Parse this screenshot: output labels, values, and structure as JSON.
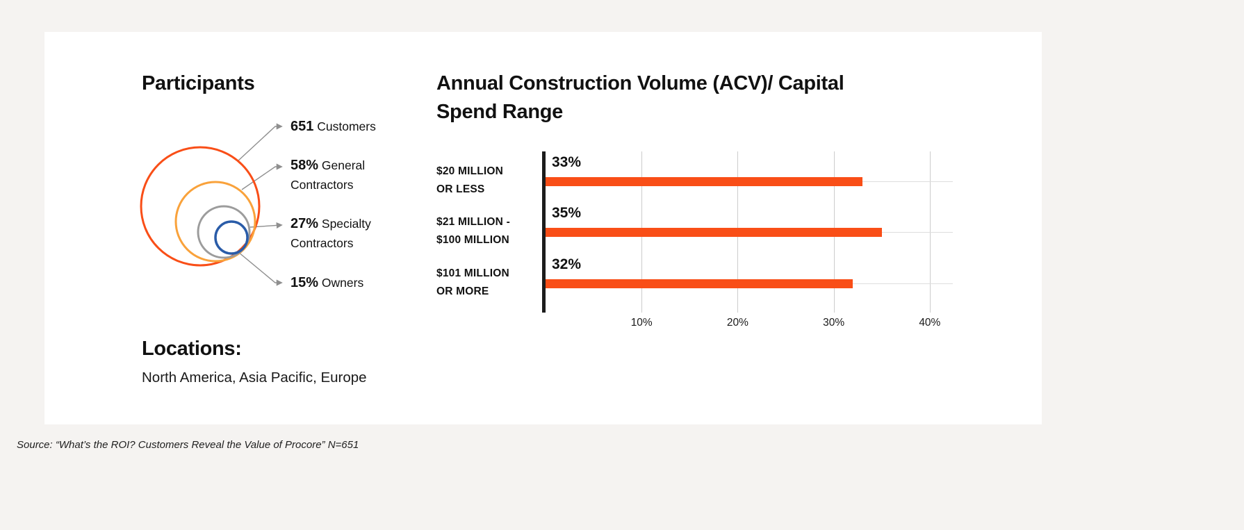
{
  "colors": {
    "page_background": "#f5f3f1",
    "card_background": "#ffffff",
    "accent_orange": "#F94E17",
    "amber": "#F9A23B",
    "gray": "#9C9C9C",
    "blue": "#2A5CA8",
    "axis": "#1c1c1c",
    "gridline": "#cccccc"
  },
  "participants": {
    "title": "Participants",
    "items": [
      {
        "value": "651",
        "label": "Customers",
        "color": "#F94E17"
      },
      {
        "value": "58%",
        "label": "General Contractors",
        "color": "#F9A23B"
      },
      {
        "value": "27%",
        "label": "Specialty Contractors",
        "color": "#9C9C9C"
      },
      {
        "value": "15%",
        "label": "Owners",
        "color": "#2A5CA8"
      }
    ]
  },
  "locations": {
    "title": "Locations:",
    "text": "North America, Asia Pacific, Europe"
  },
  "chart_data": {
    "type": "bar",
    "orientation": "horizontal",
    "title": "Annual Construction Volume (ACV)/ Capital Spend Range",
    "categories": [
      "$20 MILLION OR LESS",
      "$21 MILLION - $100 MILLION",
      "$101 MILLION OR MORE"
    ],
    "values": [
      33,
      35,
      32
    ],
    "value_labels": [
      "33%",
      "35%",
      "32%"
    ],
    "xticks": [
      {
        "value": 10,
        "label": "10%"
      },
      {
        "value": 20,
        "label": "20%"
      },
      {
        "value": 30,
        "label": "30%"
      },
      {
        "value": 40,
        "label": "40%"
      }
    ],
    "xlim": [
      0,
      42.4
    ],
    "bar_color": "#F94E17",
    "grid": true,
    "legend_position": "none"
  },
  "footer": {
    "source": "Source: “What’s the ROI? Customers Reveal the Value of Procore” N=651"
  }
}
